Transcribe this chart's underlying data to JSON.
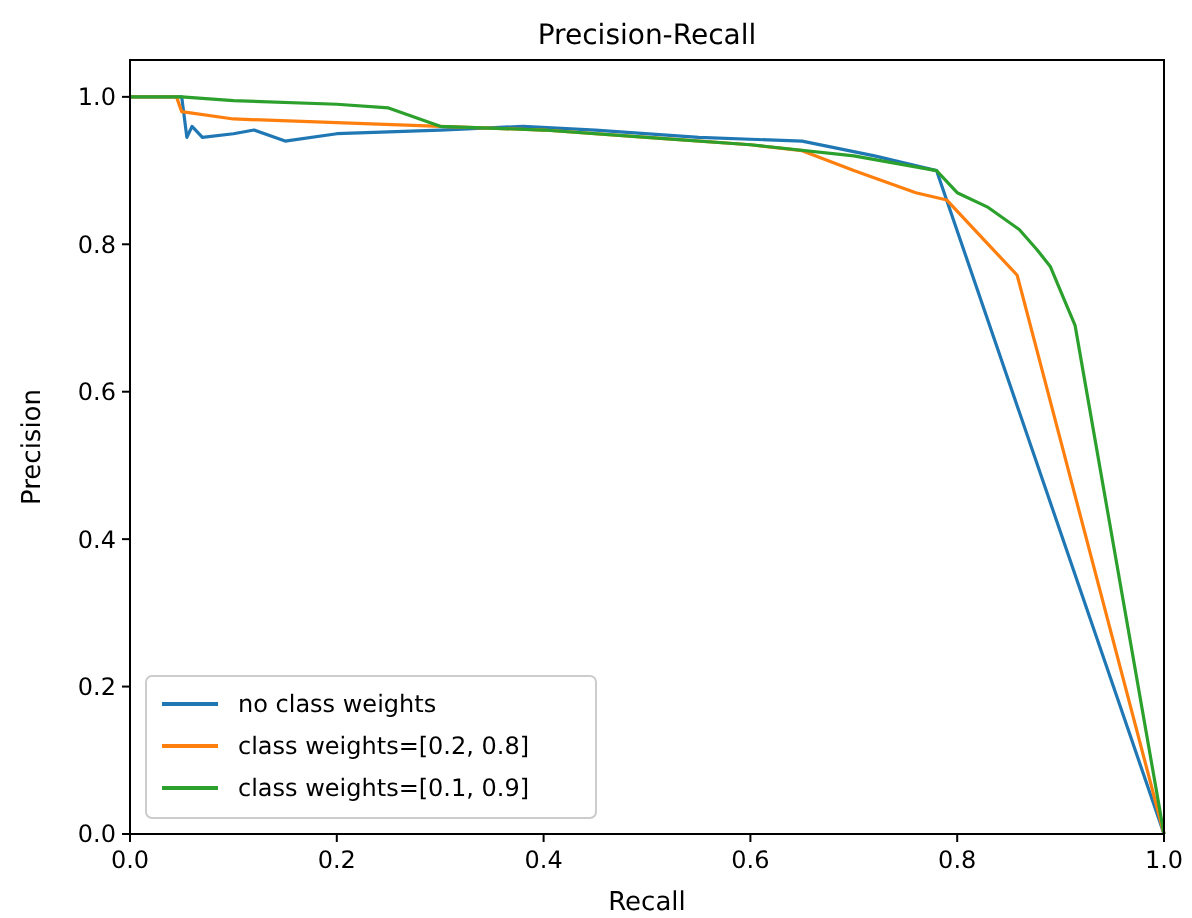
{
  "chart_data": {
    "type": "line",
    "title": "Precision-Recall",
    "xlabel": "Recall",
    "ylabel": "Precision",
    "xlim": [
      0,
      1
    ],
    "ylim": [
      0,
      1.05
    ],
    "xticks": [
      {
        "value": 0,
        "label": "0.0"
      },
      0.2,
      0.4,
      0.6,
      0.8,
      {
        "value": 1,
        "label": "1.0"
      }
    ],
    "yticks": [
      {
        "value": 0,
        "label": "0.0"
      },
      0.2,
      0.4,
      0.6,
      0.8,
      {
        "value": 1,
        "label": "1.0"
      }
    ],
    "grid": false,
    "legend": "bottom left",
    "marker": "none",
    "line_style": "solid",
    "series": [
      {
        "name": "no class weights",
        "color": "#1f77b4",
        "x": [
          0,
          0.05,
          0.055,
          0.06,
          0.07,
          0.1,
          0.12,
          0.15,
          0.2,
          0.3,
          0.38,
          0.45,
          0.55,
          0.65,
          0.72,
          0.78,
          1
        ],
        "values": [
          1,
          1,
          0.945,
          0.96,
          0.945,
          0.95,
          0.955,
          0.94,
          0.95,
          0.955,
          0.96,
          0.955,
          0.945,
          0.94,
          0.92,
          0.9,
          0
        ]
      },
      {
        "name": "class weights=[0.2, 0.8]",
        "color": "#ff7f0e",
        "x": [
          0,
          0.045,
          0.05,
          0.1,
          0.2,
          0.3,
          0.4,
          0.5,
          0.6,
          0.65,
          0.7,
          0.76,
          0.79,
          0.83,
          0.858,
          1
        ],
        "values": [
          1,
          1,
          0.98,
          0.97,
          0.965,
          0.96,
          0.955,
          0.945,
          0.935,
          0.927,
          0.9,
          0.87,
          0.86,
          0.8,
          0.758,
          0
        ]
      },
      {
        "name": "class weights=[0.1, 0.9]",
        "color": "#2ca02c",
        "x": [
          0,
          0.05,
          0.1,
          0.2,
          0.25,
          0.3,
          0.4,
          0.5,
          0.6,
          0.7,
          0.78,
          0.8,
          0.83,
          0.86,
          0.877,
          0.89,
          0.905,
          0.914,
          1
        ],
        "values": [
          1,
          1,
          0.995,
          0.99,
          0.985,
          0.96,
          0.955,
          0.945,
          0.935,
          0.92,
          0.9,
          0.87,
          0.85,
          0.82,
          0.793,
          0.77,
          0.72,
          0.69,
          0
        ]
      }
    ]
  }
}
